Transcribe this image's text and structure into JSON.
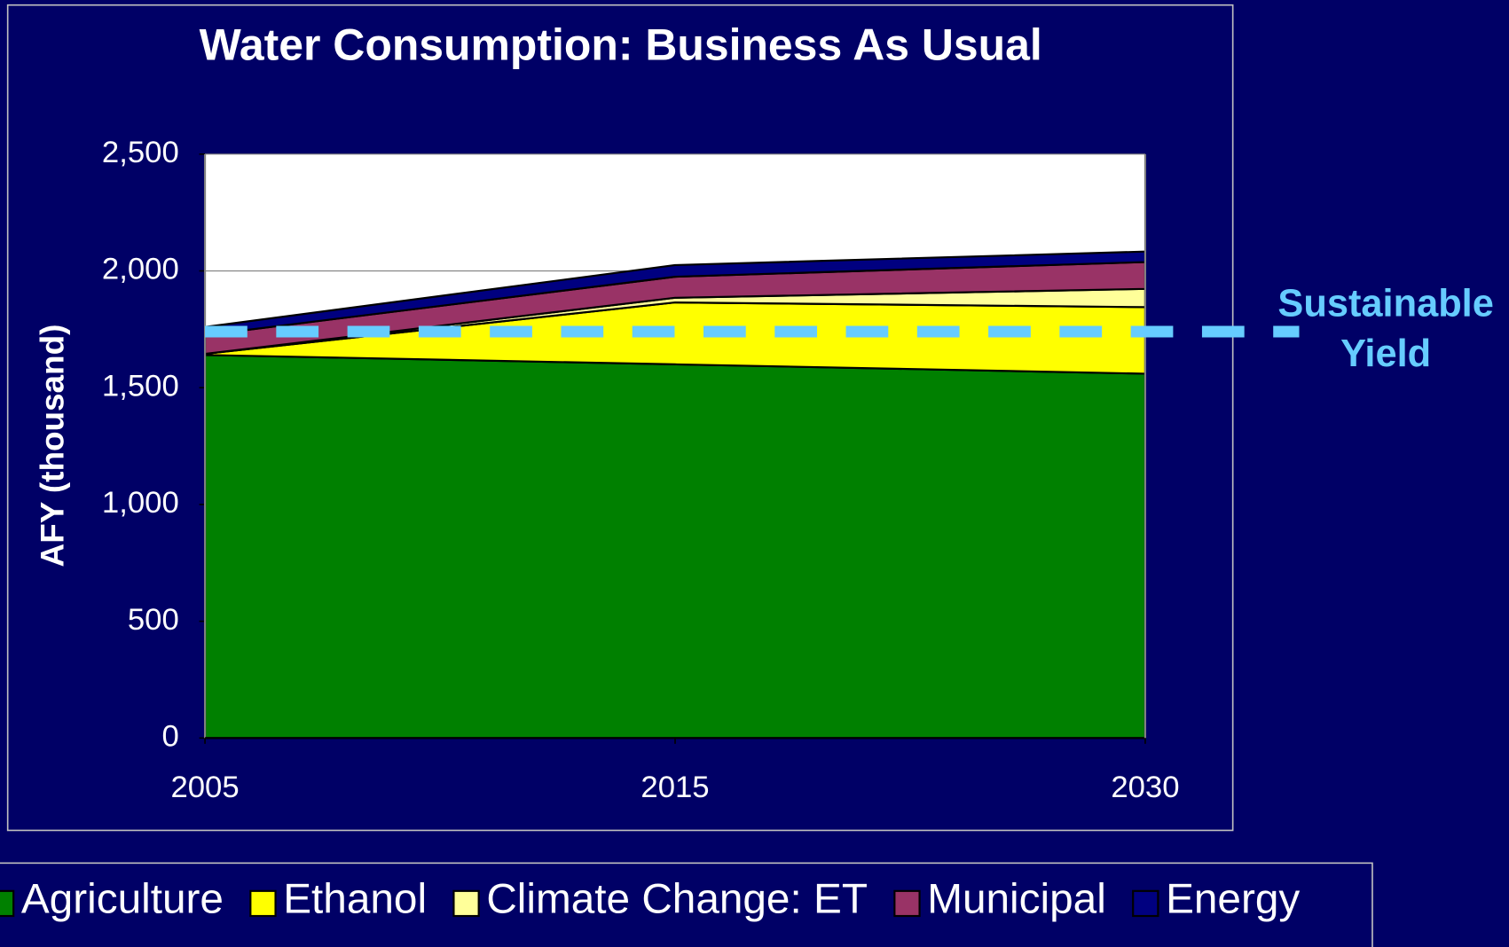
{
  "chart_data": {
    "type": "stacked_area",
    "title": "Water Consumption: Business As Usual",
    "y_label": "AFY (thousand)",
    "categories": [
      "2005",
      "2015",
      "2030"
    ],
    "series": [
      {
        "name": "Agriculture",
        "color": "#008000",
        "values": [
          1640,
          1600,
          1560
        ]
      },
      {
        "name": "Ethanol",
        "color": "#ffff00",
        "values": [
          5,
          265,
          285
        ]
      },
      {
        "name": "Climate Change: ET",
        "color": "#ffff99",
        "values": [
          0,
          20,
          78
        ]
      },
      {
        "name": "Municipal",
        "color": "#993366",
        "values": [
          80,
          90,
          115
        ]
      },
      {
        "name": "Energy",
        "color": "#000080",
        "values": [
          35,
          50,
          45
        ]
      }
    ],
    "ylim": [
      0,
      2500
    ],
    "yticks": [
      0,
      500,
      {
        "value": 1000,
        "label": "1,000"
      },
      {
        "value": 1500,
        "label": "1,500"
      },
      {
        "value": 2000,
        "label": "2,000"
      },
      {
        "value": 2500,
        "label": "2,500"
      }
    ],
    "grid": true,
    "reference_line": {
      "value": 1740,
      "label": [
        "Sustainable",
        "Yield"
      ],
      "color": "#66ccff"
    }
  }
}
